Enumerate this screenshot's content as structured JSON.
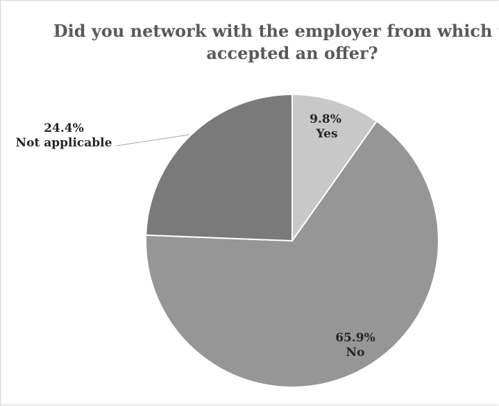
{
  "chart_data": {
    "type": "pie",
    "title_lines": [
      "Did you network with the employer from which you",
      "accepted an offer?"
    ],
    "slices": [
      {
        "name": "Yes",
        "value": 9.8,
        "label": "9.8%",
        "color": "#c8c8c8"
      },
      {
        "name": "No",
        "value": 65.9,
        "label": "65.9%",
        "color": "#969696"
      },
      {
        "name": "Not applicable",
        "value": 24.4,
        "label": "24.4%",
        "color": "#7a7a7a"
      }
    ],
    "start_angle_deg": 0,
    "direction": "clockwise",
    "legend": "none"
  }
}
